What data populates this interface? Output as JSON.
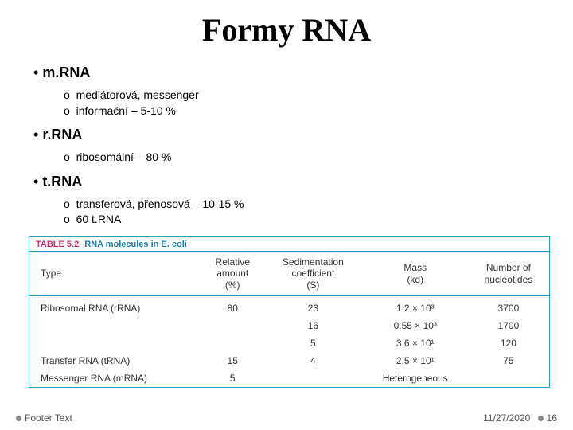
{
  "title": "Formy RNA",
  "sections": [
    {
      "heading": "m.RNA",
      "items": [
        "mediátorová, messenger",
        "informační – 5-10 %"
      ]
    },
    {
      "heading": "r.RNA",
      "items": [
        "ribosomální – 80 %"
      ]
    },
    {
      "heading": "t.RNA",
      "items": [
        "transferová, přenosová – 10-15 %",
        "60 t.RNA"
      ]
    }
  ],
  "table": {
    "tag": "TABLE 5.2",
    "title": "RNA molecules in E. coli",
    "columns": [
      "Type",
      "Relative amount (%)",
      "Sedimentation coefficient (S)",
      "Mass (kd)",
      "Number of nucleotides"
    ],
    "rows": [
      [
        "Ribosomal RNA (rRNA)",
        "80",
        "23",
        "1.2 × 10³",
        "3700"
      ],
      [
        "",
        "",
        "16",
        "0.55 × 10³",
        "1700"
      ],
      [
        "",
        "",
        "5",
        "3.6 × 10¹",
        "120"
      ],
      [
        "Transfer RNA (tRNA)",
        "15",
        "4",
        "2.5 × 10¹",
        "75"
      ],
      [
        "Messenger RNA (mRNA)",
        "5",
        "",
        "Heterogeneous",
        ""
      ]
    ],
    "border_color": "#2aa0c8",
    "tag_color": "#c62f6f",
    "title_color": "#1f7ea8"
  },
  "footer": {
    "left": "Footer Text",
    "date": "11/27/2020",
    "page": "16"
  }
}
